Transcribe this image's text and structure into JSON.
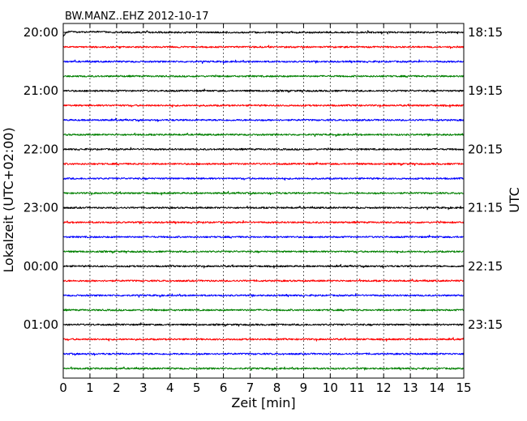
{
  "chart_data": {
    "type": "line",
    "title": "BW.MANZ..EHZ 2012-10-17",
    "xlabel": "Zeit  [min]",
    "ylabel_left": "Lokalzeit (UTC+02:00)",
    "ylabel_right": "UTC",
    "xlim": [
      0,
      15
    ],
    "x_ticks": [
      "0",
      "1",
      "2",
      "3",
      "4",
      "5",
      "6",
      "7",
      "8",
      "9",
      "10",
      "11",
      "12",
      "13",
      "14",
      "15"
    ],
    "grid": "vertical dotted",
    "left_tick_labels": [
      "20:00",
      "21:00",
      "22:00",
      "23:00",
      "00:00",
      "01:00"
    ],
    "right_tick_labels": [
      "18:15",
      "19:15",
      "20:15",
      "21:15",
      "22:15",
      "23:15"
    ],
    "trace_minutes": 15,
    "trace_count": 24,
    "trace_colors": [
      "#000000",
      "#ff0000",
      "#0000ff",
      "#008000"
    ],
    "series": [
      {
        "utc_start": "18:15",
        "color": "#000000"
      },
      {
        "utc_start": "18:30",
        "color": "#ff0000"
      },
      {
        "utc_start": "18:45",
        "color": "#0000ff"
      },
      {
        "utc_start": "19:00",
        "color": "#008000"
      },
      {
        "utc_start": "19:15",
        "color": "#000000"
      },
      {
        "utc_start": "19:30",
        "color": "#ff0000"
      },
      {
        "utc_start": "19:45",
        "color": "#0000ff"
      },
      {
        "utc_start": "20:00",
        "color": "#008000"
      },
      {
        "utc_start": "20:15",
        "color": "#000000"
      },
      {
        "utc_start": "20:30",
        "color": "#ff0000"
      },
      {
        "utc_start": "20:45",
        "color": "#0000ff"
      },
      {
        "utc_start": "21:00",
        "color": "#008000"
      },
      {
        "utc_start": "21:15",
        "color": "#000000"
      },
      {
        "utc_start": "21:30",
        "color": "#ff0000"
      },
      {
        "utc_start": "21:45",
        "color": "#0000ff"
      },
      {
        "utc_start": "22:00",
        "color": "#008000"
      },
      {
        "utc_start": "22:15",
        "color": "#000000"
      },
      {
        "utc_start": "22:30",
        "color": "#ff0000"
      },
      {
        "utc_start": "22:45",
        "color": "#0000ff"
      },
      {
        "utc_start": "23:00",
        "color": "#008000"
      },
      {
        "utc_start": "23:15",
        "color": "#000000"
      },
      {
        "utc_start": "23:30",
        "color": "#ff0000"
      },
      {
        "utc_start": "23:45",
        "color": "#0000ff"
      },
      {
        "utc_start": "00:00",
        "color": "#008000"
      }
    ]
  }
}
